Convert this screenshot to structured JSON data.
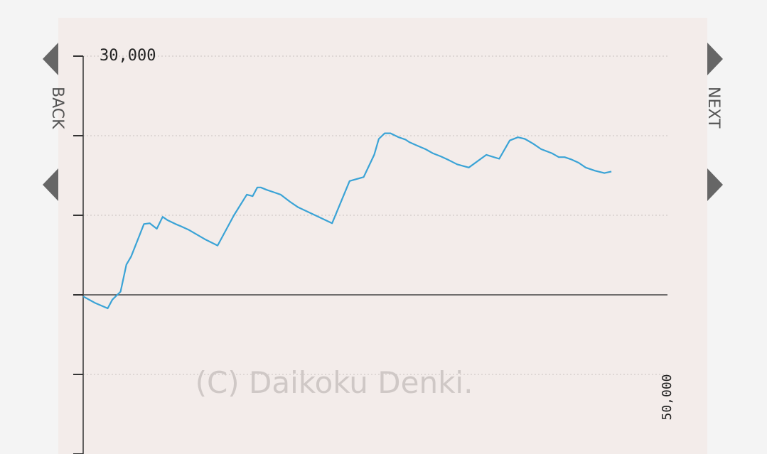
{
  "nav": {
    "back_label": "BACK",
    "next_label": "NEXT"
  },
  "watermark": "(C) Daikoku Denki.",
  "colors": {
    "line": "#3aa3d6",
    "panel": "#f3ecea",
    "arrow": "#666666"
  },
  "chart_data": {
    "type": "line",
    "title": "",
    "xlabel": "",
    "ylabel": "",
    "xlim": [
      0,
      50000
    ],
    "ylim": [
      -20000,
      30000
    ],
    "y_tick_values": [
      -20000,
      -10000,
      0,
      10000,
      20000,
      30000
    ],
    "y_top_label": "30,000",
    "x_end_label": "50,000",
    "grid": true,
    "legend": "none",
    "series": [
      {
        "x": [
          0,
          1000,
          2100,
          2500,
          3200,
          3700,
          4100,
          4800,
          5200,
          5700,
          6300,
          6800,
          7200,
          7900,
          8400,
          9000,
          10400,
          11500,
          12900,
          14000,
          14500,
          14900,
          15200,
          15700,
          16300,
          16900,
          17700,
          18400,
          20000,
          21300,
          22800,
          24000,
          24900,
          25300,
          25800,
          26300,
          27000,
          27600,
          27900,
          28500,
          29300,
          29900,
          30600,
          31200,
          32000,
          33000,
          34500,
          35600,
          36500,
          37200,
          37800,
          38500,
          39200,
          40100,
          40700,
          41200,
          41800,
          42400,
          43000,
          43800,
          44600,
          45200
        ],
        "y": [
          -200,
          -1000,
          -1700,
          -600,
          400,
          3800,
          4800,
          7400,
          8900,
          9000,
          8300,
          9800,
          9400,
          8900,
          8600,
          8200,
          7000,
          6200,
          10000,
          12600,
          12400,
          13500,
          13500,
          13200,
          12900,
          12600,
          11700,
          11000,
          9900,
          9000,
          14300,
          14800,
          17600,
          19600,
          20300,
          20300,
          19800,
          19500,
          19200,
          18800,
          18300,
          17800,
          17400,
          17000,
          16400,
          16000,
          17600,
          17100,
          19400,
          19800,
          19600,
          19000,
          18300,
          17800,
          17300,
          17300,
          17000,
          16600,
          16000,
          15600,
          15300,
          15500
        ]
      }
    ]
  }
}
